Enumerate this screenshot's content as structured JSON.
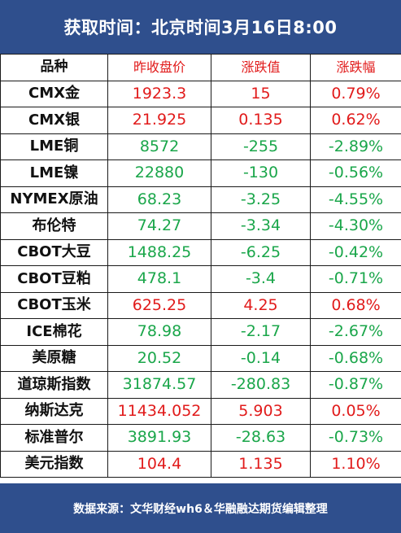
{
  "header": {
    "title": "获取时间：北京时间3月16日8:00"
  },
  "table": {
    "headers": [
      "品种",
      "昨收盘价",
      "涨跌值",
      "涨跌幅"
    ],
    "rows": [
      {
        "name": "CMX金",
        "price": "1923.3",
        "change": "15",
        "pct": "0.79%",
        "dir": "up"
      },
      {
        "name": "CMX银",
        "price": "21.925",
        "change": "0.135",
        "pct": "0.62%",
        "dir": "up"
      },
      {
        "name": "LME铜",
        "price": "8572",
        "change": "-255",
        "pct": "-2.89%",
        "dir": "down"
      },
      {
        "name": "LME镍",
        "price": "22880",
        "change": "-130",
        "pct": "-0.56%",
        "dir": "down"
      },
      {
        "name": "NYMEX原油",
        "price": "68.23",
        "change": "-3.25",
        "pct": "-4.55%",
        "dir": "down"
      },
      {
        "name": "布伦特",
        "price": "74.27",
        "change": "-3.34",
        "pct": "-4.30%",
        "dir": "down"
      },
      {
        "name": "CBOT大豆",
        "price": "1488.25",
        "change": "-6.25",
        "pct": "-0.42%",
        "dir": "down"
      },
      {
        "name": "CBOT豆粕",
        "price": "478.1",
        "change": "-3.4",
        "pct": "-0.71%",
        "dir": "down"
      },
      {
        "name": "CBOT玉米",
        "price": "625.25",
        "change": "4.25",
        "pct": "0.68%",
        "dir": "up"
      },
      {
        "name": "ICE棉花",
        "price": "78.98",
        "change": "-2.17",
        "pct": "-2.67%",
        "dir": "down"
      },
      {
        "name": "美原糖",
        "price": "20.52",
        "change": "-0.14",
        "pct": "-0.68%",
        "dir": "down"
      },
      {
        "name": "道琼斯指数",
        "price": "31874.57",
        "change": "-280.83",
        "pct": "-0.87%",
        "dir": "down"
      },
      {
        "name": "纳斯达克",
        "price": "11434.052",
        "change": "5.903",
        "pct": "0.05%",
        "dir": "up"
      },
      {
        "name": "标准普尔",
        "price": "3891.93",
        "change": "-28.63",
        "pct": "-0.73%",
        "dir": "down"
      },
      {
        "name": "美元指数",
        "price": "104.4",
        "change": "1.135",
        "pct": "1.10%",
        "dir": "up"
      }
    ]
  },
  "footer": {
    "source": "数据来源：文华财经wh6＆华融融达期货编辑整理"
  },
  "colors": {
    "header_bg": "#2f4f8d",
    "up": "#e11b1b",
    "down": "#1aa64a"
  }
}
